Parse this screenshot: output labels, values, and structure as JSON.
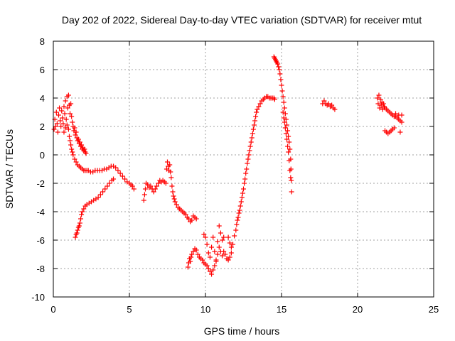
{
  "chart_data": {
    "type": "scatter",
    "title": "Day 202 of 2022, Sidereal Day-to-day VTEC variation (SDTVAR) for receiver mtut",
    "xlabel": "GPS time / hours",
    "ylabel": "SDTVAR / TECUs",
    "xlim": [
      0,
      25
    ],
    "ylim": [
      -10,
      8
    ],
    "x_ticks": [
      "0",
      "5",
      "10",
      "15",
      "20",
      "25"
    ],
    "y_ticks": [
      "-10",
      "-8",
      "-6",
      "-4",
      "-2",
      "0",
      "2",
      "4",
      "6",
      "8"
    ],
    "grid": true,
    "marker": "+",
    "color": "#ff0000",
    "segments": [
      [
        [
          0.05,
          1.8
        ],
        [
          0.1,
          2.5
        ],
        [
          0.15,
          2.0
        ],
        [
          0.2,
          3.0
        ],
        [
          0.25,
          2.2
        ],
        [
          0.3,
          1.6
        ],
        [
          0.35,
          2.8
        ],
        [
          0.4,
          3.3
        ],
        [
          0.45,
          2.4
        ],
        [
          0.5,
          2.0
        ],
        [
          0.55,
          3.1
        ],
        [
          0.6,
          2.6
        ],
        [
          0.65,
          2.2
        ],
        [
          0.7,
          3.4
        ],
        [
          0.75,
          2.9
        ],
        [
          0.8,
          3.8
        ],
        [
          0.85,
          2.5
        ],
        [
          0.9,
          4.1
        ],
        [
          0.95,
          3.3
        ],
        [
          1.0,
          4.2
        ],
        [
          1.05,
          3.5
        ],
        [
          1.1,
          2.9
        ],
        [
          1.15,
          3.6
        ],
        [
          1.2,
          2.7
        ],
        [
          1.25,
          2.3
        ],
        [
          1.3,
          2.0
        ],
        [
          1.35,
          1.7
        ],
        [
          1.4,
          1.9
        ],
        [
          1.45,
          1.4
        ],
        [
          1.5,
          1.6
        ],
        [
          1.55,
          1.2
        ],
        [
          1.6,
          1.0
        ],
        [
          1.65,
          1.1
        ],
        [
          1.7,
          0.8
        ],
        [
          1.75,
          0.9
        ],
        [
          1.8,
          0.6
        ],
        [
          1.85,
          0.7
        ],
        [
          1.9,
          0.4
        ],
        [
          1.95,
          0.5
        ],
        [
          2.0,
          0.3
        ],
        [
          2.05,
          0.4
        ],
        [
          2.1,
          0.2
        ],
        [
          2.15,
          0.1
        ]
      ],
      [
        [
          0.7,
          1.6
        ],
        [
          0.8,
          1.9
        ],
        [
          0.9,
          2.1
        ],
        [
          1.0,
          1.8
        ],
        [
          1.05,
          1.3
        ],
        [
          1.1,
          1.0
        ],
        [
          1.15,
          0.7
        ],
        [
          1.2,
          0.4
        ],
        [
          1.25,
          0.2
        ],
        [
          1.3,
          0.0
        ],
        [
          1.4,
          -0.3
        ],
        [
          1.5,
          -0.5
        ],
        [
          1.6,
          -0.7
        ],
        [
          1.7,
          -0.8
        ],
        [
          1.8,
          -0.9
        ],
        [
          1.9,
          -1.0
        ],
        [
          2.0,
          -1.1
        ],
        [
          2.1,
          -1.1
        ],
        [
          2.2,
          -1.1
        ],
        [
          2.3,
          -1.1
        ],
        [
          2.45,
          -1.2
        ],
        [
          2.6,
          -1.2
        ],
        [
          2.75,
          -1.1
        ],
        [
          2.9,
          -1.1
        ],
        [
          3.05,
          -1.1
        ],
        [
          3.2,
          -1.1
        ],
        [
          3.35,
          -1.0
        ],
        [
          3.5,
          -1.0
        ],
        [
          3.65,
          -0.9
        ],
        [
          3.8,
          -0.8
        ],
        [
          3.95,
          -0.8
        ],
        [
          4.1,
          -0.9
        ],
        [
          4.25,
          -1.1
        ],
        [
          4.4,
          -1.3
        ],
        [
          4.55,
          -1.5
        ],
        [
          4.7,
          -1.7
        ],
        [
          4.85,
          -1.9
        ],
        [
          5.0,
          -2.0
        ],
        [
          5.1,
          -2.1
        ],
        [
          5.2,
          -2.2
        ],
        [
          5.3,
          -2.4
        ]
      ],
      [
        [
          1.45,
          -5.8
        ],
        [
          1.5,
          -5.6
        ],
        [
          1.55,
          -5.5
        ],
        [
          1.6,
          -5.3
        ],
        [
          1.65,
          -5.1
        ],
        [
          1.7,
          -5.0
        ],
        [
          1.75,
          -4.8
        ],
        [
          1.8,
          -4.5
        ],
        [
          1.85,
          -4.2
        ],
        [
          1.9,
          -4.0
        ],
        [
          2.0,
          -3.8
        ],
        [
          2.1,
          -3.6
        ],
        [
          2.2,
          -3.5
        ],
        [
          2.35,
          -3.4
        ],
        [
          2.5,
          -3.3
        ],
        [
          2.65,
          -3.2
        ],
        [
          2.8,
          -3.1
        ],
        [
          2.95,
          -3.0
        ],
        [
          3.1,
          -2.8
        ],
        [
          3.25,
          -2.6
        ],
        [
          3.4,
          -2.4
        ],
        [
          3.55,
          -2.2
        ],
        [
          3.7,
          -2.0
        ],
        [
          3.85,
          -1.8
        ],
        [
          3.95,
          -1.7
        ]
      ],
      [
        [
          5.95,
          -3.2
        ],
        [
          6.0,
          -2.8
        ],
        [
          6.05,
          -2.4
        ],
        [
          6.1,
          -2.0
        ],
        [
          6.2,
          -2.1
        ],
        [
          6.3,
          -2.3
        ],
        [
          6.4,
          -2.2
        ],
        [
          6.5,
          -2.4
        ],
        [
          6.6,
          -2.6
        ],
        [
          6.7,
          -2.4
        ],
        [
          6.8,
          -2.2
        ],
        [
          6.9,
          -2.0
        ],
        [
          7.0,
          -1.8
        ],
        [
          7.1,
          -1.9
        ],
        [
          7.2,
          -1.8
        ],
        [
          7.3,
          -1.9
        ],
        [
          7.4,
          -2.0
        ],
        [
          7.45,
          -1.0
        ],
        [
          7.5,
          -0.5
        ],
        [
          7.55,
          -0.8
        ],
        [
          7.6,
          -1.1
        ],
        [
          7.65,
          -0.7
        ],
        [
          7.7,
          -1.2
        ],
        [
          7.75,
          -1.6
        ],
        [
          7.8,
          -2.2
        ],
        [
          7.85,
          -2.6
        ],
        [
          7.9,
          -2.9
        ],
        [
          7.95,
          -3.1
        ],
        [
          8.0,
          -3.3
        ],
        [
          8.1,
          -3.5
        ],
        [
          8.2,
          -3.7
        ],
        [
          8.3,
          -3.8
        ],
        [
          8.4,
          -3.9
        ],
        [
          8.5,
          -4.0
        ],
        [
          8.6,
          -4.1
        ],
        [
          8.7,
          -4.2
        ],
        [
          8.8,
          -4.4
        ],
        [
          8.9,
          -4.5
        ],
        [
          9.0,
          -4.7
        ],
        [
          9.1,
          -4.6
        ],
        [
          9.2,
          -4.3
        ],
        [
          9.3,
          -4.4
        ],
        [
          9.4,
          -4.5
        ]
      ],
      [
        [
          8.85,
          -7.9
        ],
        [
          8.9,
          -7.6
        ],
        [
          8.95,
          -7.3
        ],
        [
          9.0,
          -7.5
        ],
        [
          9.05,
          -7.2
        ],
        [
          9.1,
          -7.0
        ],
        [
          9.2,
          -6.8
        ],
        [
          9.3,
          -6.6
        ],
        [
          9.4,
          -6.7
        ],
        [
          9.5,
          -7.0
        ],
        [
          9.6,
          -7.2
        ],
        [
          9.7,
          -7.3
        ],
        [
          9.8,
          -7.4
        ],
        [
          9.9,
          -7.6
        ],
        [
          10.0,
          -7.7
        ],
        [
          10.1,
          -7.8
        ],
        [
          10.2,
          -8.0
        ],
        [
          10.3,
          -8.2
        ],
        [
          10.4,
          -8.4
        ],
        [
          10.5,
          -8.1
        ],
        [
          10.6,
          -7.8
        ],
        [
          10.7,
          -7.5
        ],
        [
          10.8,
          -7.0
        ],
        [
          10.9,
          -6.5
        ],
        [
          11.0,
          -6.8
        ],
        [
          11.1,
          -7.1
        ],
        [
          11.2,
          -6.8
        ],
        [
          11.3,
          -7.0
        ],
        [
          11.4,
          -7.3
        ],
        [
          11.5,
          -7.4
        ],
        [
          11.6,
          -7.2
        ],
        [
          11.7,
          -6.9
        ]
      ],
      [
        [
          9.9,
          -5.6
        ],
        [
          10.0,
          -5.8
        ],
        [
          10.1,
          -6.3
        ],
        [
          10.2,
          -6.9
        ],
        [
          10.3,
          -7.2
        ],
        [
          10.4,
          -6.5
        ],
        [
          10.5,
          -5.8
        ],
        [
          10.6,
          -6.8
        ],
        [
          10.7,
          -7.4
        ],
        [
          10.8,
          -6.1
        ],
        [
          10.9,
          -5.0
        ],
        [
          11.0,
          -5.5
        ],
        [
          11.1,
          -6.0
        ],
        [
          11.2,
          -5.8
        ]
      ],
      [
        [
          11.5,
          -5.8
        ],
        [
          11.6,
          -6.2
        ],
        [
          11.7,
          -6.5
        ],
        [
          11.8,
          -6.3
        ],
        [
          11.9,
          -5.7
        ],
        [
          12.0,
          -5.3
        ],
        [
          12.05,
          -4.9
        ],
        [
          12.1,
          -4.6
        ],
        [
          12.15,
          -4.4
        ],
        [
          12.2,
          -4.1
        ],
        [
          12.25,
          -3.9
        ],
        [
          12.3,
          -3.6
        ],
        [
          12.35,
          -3.3
        ],
        [
          12.4,
          -3.0
        ],
        [
          12.45,
          -2.7
        ],
        [
          12.5,
          -2.4
        ],
        [
          12.55,
          -2.0
        ],
        [
          12.6,
          -1.7
        ],
        [
          12.65,
          -1.3
        ],
        [
          12.7,
          -1.0
        ],
        [
          12.75,
          -0.6
        ],
        [
          12.8,
          -0.3
        ],
        [
          12.85,
          0.0
        ],
        [
          12.9,
          0.3
        ],
        [
          12.95,
          0.6
        ],
        [
          13.0,
          0.9
        ],
        [
          13.05,
          1.2
        ],
        [
          13.1,
          1.5
        ],
        [
          13.15,
          1.8
        ],
        [
          13.2,
          2.1
        ],
        [
          13.25,
          2.4
        ],
        [
          13.3,
          2.7
        ],
        [
          13.35,
          3.0
        ],
        [
          13.4,
          3.2
        ],
        [
          13.5,
          3.4
        ],
        [
          13.6,
          3.6
        ],
        [
          13.7,
          3.8
        ],
        [
          13.8,
          3.9
        ],
        [
          13.9,
          4.0
        ],
        [
          14.0,
          4.1
        ],
        [
          14.1,
          4.1
        ],
        [
          14.2,
          4.0
        ],
        [
          14.3,
          4.0
        ],
        [
          14.4,
          4.0
        ],
        [
          14.5,
          4.0
        ],
        [
          14.55,
          3.9
        ]
      ],
      [
        [
          14.5,
          6.9
        ],
        [
          14.55,
          6.8
        ],
        [
          14.6,
          6.7
        ],
        [
          14.65,
          6.6
        ],
        [
          14.7,
          6.5
        ],
        [
          14.75,
          6.4
        ],
        [
          14.8,
          6.2
        ],
        [
          14.85,
          6.0
        ],
        [
          14.9,
          5.7
        ],
        [
          14.95,
          5.3
        ],
        [
          15.0,
          4.9
        ],
        [
          15.05,
          4.5
        ],
        [
          15.1,
          4.1
        ],
        [
          15.15,
          3.7
        ],
        [
          15.2,
          3.3
        ],
        [
          15.25,
          2.9
        ],
        [
          15.3,
          2.5
        ],
        [
          15.35,
          2.1
        ],
        [
          15.4,
          1.7
        ],
        [
          15.45,
          1.3
        ],
        [
          15.5,
          0.9
        ],
        [
          15.55,
          0.4
        ],
        [
          15.6,
          -0.3
        ],
        [
          15.62,
          -1.0
        ],
        [
          15.64,
          -1.8
        ],
        [
          15.66,
          -2.6
        ]
      ],
      [
        [
          15.1,
          3.0
        ],
        [
          15.15,
          2.6
        ],
        [
          15.2,
          2.3
        ],
        [
          15.25,
          1.9
        ],
        [
          15.3,
          1.5
        ],
        [
          15.35,
          1.1
        ],
        [
          15.4,
          0.6
        ],
        [
          15.45,
          0.2
        ],
        [
          15.5,
          -0.4
        ],
        [
          15.55,
          -1.1
        ],
        [
          15.6,
          -1.6
        ]
      ],
      [
        [
          17.7,
          3.6
        ],
        [
          17.8,
          3.8
        ],
        [
          17.9,
          3.6
        ],
        [
          18.0,
          3.5
        ],
        [
          18.1,
          3.6
        ],
        [
          18.2,
          3.4
        ],
        [
          18.3,
          3.5
        ],
        [
          18.4,
          3.3
        ],
        [
          18.5,
          3.2
        ]
      ],
      [
        [
          21.3,
          4.0
        ],
        [
          21.35,
          3.6
        ],
        [
          21.4,
          4.2
        ],
        [
          21.45,
          3.3
        ],
        [
          21.5,
          3.9
        ],
        [
          21.55,
          3.5
        ],
        [
          21.6,
          3.7
        ],
        [
          21.65,
          3.2
        ],
        [
          21.7,
          3.6
        ],
        [
          21.75,
          3.4
        ],
        [
          21.8,
          3.3
        ],
        [
          21.9,
          3.2
        ],
        [
          22.0,
          3.1
        ],
        [
          22.1,
          3.0
        ],
        [
          22.2,
          2.9
        ],
        [
          22.3,
          2.8
        ],
        [
          22.4,
          2.7
        ],
        [
          22.5,
          2.7
        ],
        [
          22.6,
          2.6
        ],
        [
          22.7,
          2.5
        ],
        [
          22.8,
          2.4
        ],
        [
          22.9,
          2.3
        ],
        [
          22.5,
          2.9
        ],
        [
          22.7,
          2.8
        ],
        [
          22.9,
          2.8
        ]
      ],
      [
        [
          21.8,
          1.7
        ],
        [
          21.9,
          1.6
        ],
        [
          22.0,
          1.5
        ],
        [
          22.1,
          1.6
        ],
        [
          22.2,
          1.7
        ],
        [
          22.3,
          1.8
        ],
        [
          22.4,
          1.9
        ],
        [
          22.8,
          1.6
        ]
      ]
    ]
  }
}
